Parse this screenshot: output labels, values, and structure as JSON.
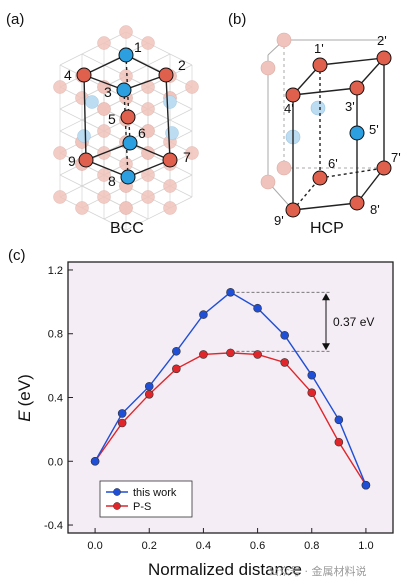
{
  "panels": {
    "a": {
      "label": "(a)",
      "caption": "BCC",
      "atom_labels": [
        "1",
        "2",
        "3",
        "4",
        "5",
        "6",
        "7",
        "8",
        "9"
      ]
    },
    "b": {
      "label": "(b)",
      "caption": "HCP",
      "atom_labels": [
        "1'",
        "2'",
        "3'",
        "4'",
        "5'",
        "6'",
        "7'",
        "8'",
        "9'"
      ]
    },
    "c": {
      "label": "(c)"
    }
  },
  "colors": {
    "blue": "#1f4fd6",
    "red": "#e0262a",
    "red_atom": "#e0604e",
    "blue_atom": "#2b9fe0",
    "ghost_atom": "#f0c4bc",
    "ghost_blue": "#bcdcf2",
    "plot_bg": "#f5edf5"
  },
  "chart_data": {
    "type": "line",
    "xlabel": "Normalized distance",
    "ylabel": "E (eV)",
    "ylabel_italic": "E",
    "ylabel_unit": "(eV)",
    "xlim": [
      -0.1,
      1.1
    ],
    "ylim": [
      -0.45,
      1.25
    ],
    "xticks": [
      "0.0",
      "0.2",
      "0.4",
      "0.6",
      "0.8",
      "1.0"
    ],
    "yticks": [
      "-0.4",
      "0.0",
      "0.4",
      "0.8",
      "1.2"
    ],
    "x": [
      0.0,
      0.1,
      0.2,
      0.3,
      0.4,
      0.5,
      0.6,
      0.7,
      0.8,
      0.9,
      1.0
    ],
    "series": [
      {
        "name": "this work",
        "color": "#1f4fd6",
        "values": [
          0.0,
          0.3,
          0.47,
          0.69,
          0.92,
          1.06,
          0.96,
          0.79,
          0.54,
          0.26,
          -0.15
        ]
      },
      {
        "name": "P-S",
        "color": "#e0262a",
        "values": [
          0.0,
          0.24,
          0.42,
          0.58,
          0.67,
          0.68,
          0.67,
          0.62,
          0.43,
          0.12,
          -0.15
        ]
      }
    ],
    "annotation": {
      "text": "0.37 eV",
      "y_top": 1.06,
      "y_bottom": 0.69
    },
    "legend": "bottom-left",
    "grid": false
  },
  "watermark": "公众号 · 金属材料说"
}
